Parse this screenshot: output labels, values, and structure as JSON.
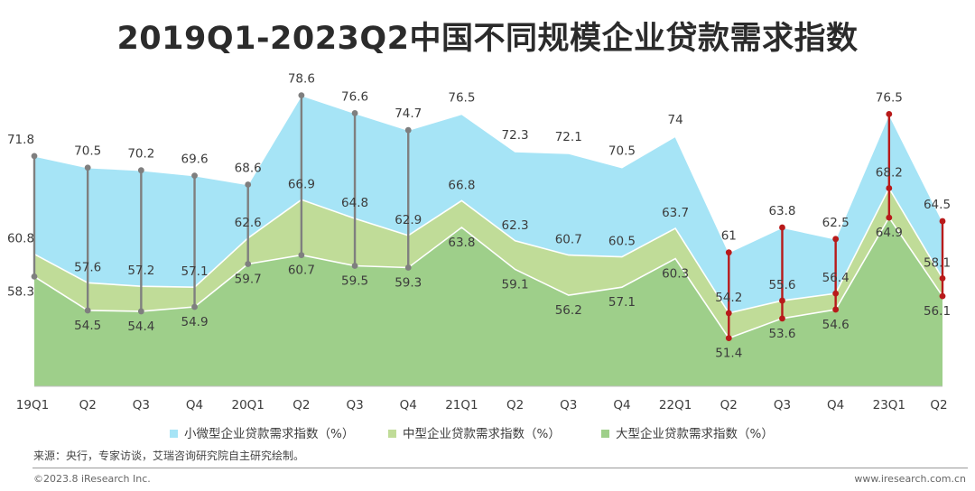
{
  "page": {
    "title": "2019Q1-2023Q2中国不同规模企业贷款需求指数",
    "source": "来源：央行，专家访谈，艾瑞咨询研究院自主研究绘制。",
    "copyright": "©2023.8 iResearch Inc.",
    "website": "www.iresearch.com.cn"
  },
  "colors": {
    "small": "#a6e4f6",
    "medium": "#c0dc98",
    "large": "#9ecf8a",
    "line": "#ffffff",
    "connector_gray": "#7f7f7f",
    "connector_red": "#b81a1a"
  },
  "chart_data": {
    "type": "area",
    "title": "2019Q1-2023Q2中国不同规模企业贷款需求指数",
    "categories": [
      "19Q1",
      "Q2",
      "Q3",
      "Q4",
      "20Q1",
      "Q2",
      "Q3",
      "Q4",
      "21Q1",
      "Q2",
      "Q3",
      "Q4",
      "22Q1",
      "Q2",
      "Q3",
      "Q4",
      "23Q1",
      "Q2"
    ],
    "series": [
      {
        "name": "小微型企业贷款需求指数（%）",
        "key": "small",
        "values": [
          71.8,
          70.5,
          70.2,
          69.6,
          68.6,
          78.6,
          76.6,
          74.7,
          76.5,
          72.3,
          72.1,
          70.5,
          74,
          61,
          63.8,
          62.5,
          76.5,
          64.5
        ],
        "labels": [
          "71.8",
          "70.5",
          "70.2",
          "69.6",
          "68.6",
          "78.6",
          "76.6",
          "74.7",
          "76.5",
          "72.3",
          "72.1",
          "70.5",
          "74",
          "61",
          "63.8",
          "62.5",
          "76.5",
          "64.5"
        ]
      },
      {
        "name": "中型企业贷款需求指数（%）",
        "key": "medium",
        "values": [
          60.8,
          57.6,
          57.2,
          57.1,
          62.6,
          66.9,
          64.8,
          62.9,
          66.8,
          62.3,
          60.7,
          60.5,
          63.7,
          54.2,
          55.6,
          56.4,
          68.2,
          58.1
        ],
        "labels": [
          "60.8",
          "57.6",
          "57.2",
          "57.1",
          "62.6",
          "66.9",
          "64.8",
          "62.9",
          "66.8",
          "62.3",
          "60.7",
          "60.5",
          "63.7",
          "54.2",
          "55.6",
          "56.4",
          "68.2",
          "58.1"
        ]
      },
      {
        "name": "大型企业贷款需求指数（%）",
        "key": "large",
        "values": [
          58.3,
          54.5,
          54.4,
          54.9,
          59.7,
          60.7,
          59.5,
          59.3,
          63.8,
          59.1,
          56.2,
          57.1,
          60.3,
          51.4,
          53.6,
          54.6,
          64.9,
          56.1
        ],
        "labels": [
          "58.3",
          "54.5",
          "54.4",
          "54.9",
          "59.7",
          "60.7",
          "59.5",
          "59.3",
          "63.8",
          "59.1",
          "56.2",
          "57.1",
          "60.3",
          "51.4",
          "53.6",
          "54.6",
          "64.9",
          "56.1"
        ]
      }
    ],
    "connectors": {
      "gray_indices": [
        0,
        1,
        2,
        3,
        4,
        5,
        6,
        7
      ],
      "red_indices": [
        13,
        14,
        15,
        16,
        17
      ]
    },
    "ylim": [
      46,
      82
    ],
    "legend": "bottom",
    "grid": false,
    "xlabel": "",
    "ylabel": ""
  }
}
